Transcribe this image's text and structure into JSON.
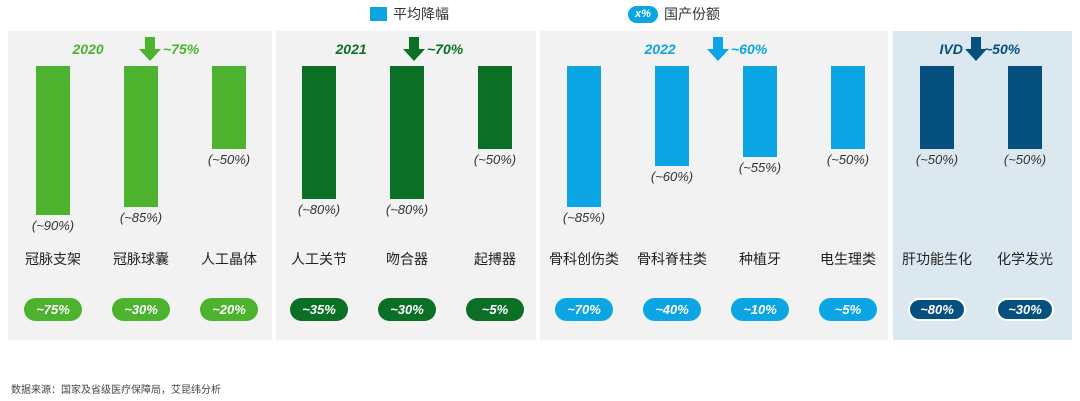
{
  "legend": {
    "avg_drop": "平均降幅",
    "share_badge": "x%",
    "share_label": "国产份额"
  },
  "groups": [
    {
      "id": "g2020",
      "title": "2020",
      "drop": "~75%",
      "color": "#4db32e",
      "text_color": "#4db32e",
      "bg": "#f2f2f2"
    },
    {
      "id": "g2021",
      "title": "2021",
      "drop": "~70%",
      "color": "#0b7026",
      "text_color": "#0b7026",
      "bg": "#f2f2f2"
    },
    {
      "id": "g2022",
      "title": "2022",
      "drop": "~60%",
      "color": "#0aa5e2",
      "text_color": "#0aa5e2",
      "bg": "#f2f2f2"
    },
    {
      "id": "givd",
      "title": "IVD",
      "drop": "~50%",
      "color": "#06507f",
      "text_color": "#06507f",
      "bg": "#dce8ef"
    }
  ],
  "chart_data": {
    "type": "bar",
    "categories": [
      "冠脉支架",
      "冠脉球囊",
      "人工晶体",
      "人工关节",
      "吻合器",
      "起搏器",
      "骨科创伤类",
      "骨科脊柱类",
      "种植牙",
      "电生理类",
      "肝功能生化",
      "化学发光"
    ],
    "series": [
      {
        "name": "平均降幅",
        "values": [
          90,
          85,
          50,
          80,
          80,
          50,
          85,
          60,
          55,
          50,
          50,
          50
        ],
        "labels": [
          "(~90%)",
          "(~85%)",
          "(~50%)",
          "(~80%)",
          "(~80%)",
          "(~50%)",
          "(~85%)",
          "(~60%)",
          "(~55%)",
          "(~50%)",
          "(~50%)",
          "(~50%)"
        ]
      },
      {
        "name": "国产份额",
        "values": [
          75,
          30,
          20,
          35,
          30,
          5,
          70,
          40,
          10,
          5,
          80,
          30
        ],
        "labels": [
          "~75%",
          "~30%",
          "~20%",
          "~35%",
          "~30%",
          "~5%",
          "~70%",
          "~40%",
          "~10%",
          "~5%",
          "~80%",
          "~30%"
        ]
      }
    ],
    "group_of_category": [
      0,
      0,
      0,
      1,
      1,
      1,
      2,
      2,
      2,
      2,
      3,
      3
    ],
    "ylim": [
      0,
      100
    ],
    "grid": false,
    "legend_position": "top-center"
  },
  "source": "数据来源：国家及省级医疗保障局，艾昆纬分析"
}
